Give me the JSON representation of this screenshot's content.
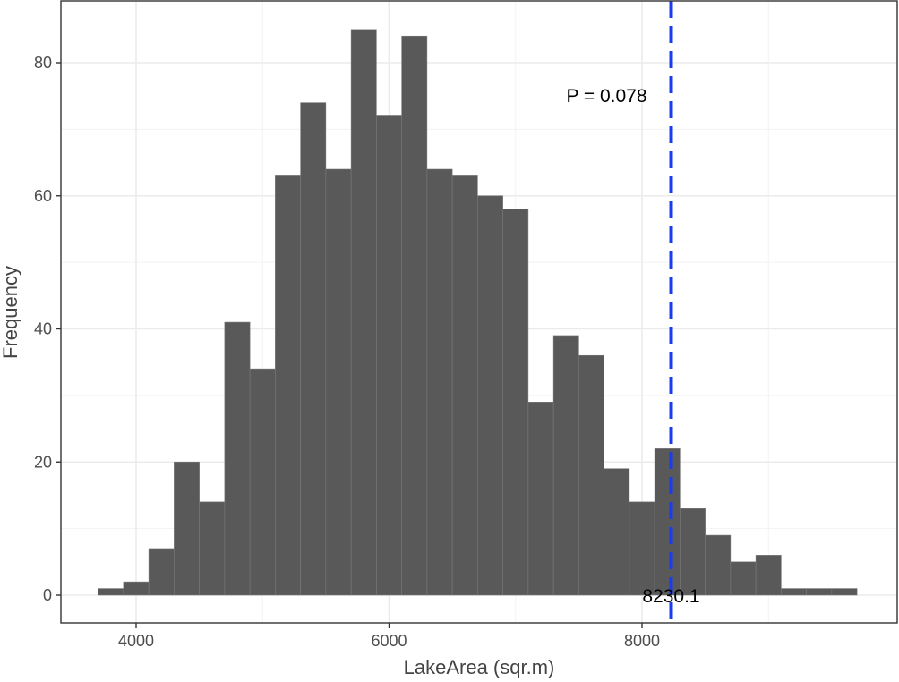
{
  "chart_data": {
    "type": "bar",
    "subtype": "histogram",
    "title": "",
    "xlabel": "LakeArea (sqr.m)",
    "ylabel": "Frequency",
    "xlim": [
      3520,
      9800
    ],
    "ylim": [
      -3,
      89
    ],
    "x_ticks": [
      4000,
      6000,
      8000
    ],
    "x_tick_labels": [
      "4000",
      "6000",
      "8000"
    ],
    "y_ticks": [
      0,
      20,
      40,
      60,
      80
    ],
    "y_tick_labels": [
      "0",
      "20",
      "40",
      "60",
      "80"
    ],
    "bin_width": 200,
    "bin_starts": [
      3700,
      3900,
      4100,
      4300,
      4500,
      4700,
      4900,
      5100,
      5300,
      5500,
      5700,
      5900,
      6100,
      6300,
      6500,
      6700,
      6900,
      7100,
      7300,
      7500,
      7700,
      7900,
      8100,
      8300,
      8500,
      8700,
      8900,
      9100,
      9300,
      9500
    ],
    "values": [
      1,
      2,
      7,
      20,
      14,
      41,
      34,
      63,
      74,
      64,
      85,
      72,
      84,
      64,
      63,
      60,
      58,
      29,
      39,
      36,
      19,
      14,
      22,
      13,
      9,
      5,
      6,
      1,
      1,
      1
    ],
    "bar_color": "#595959",
    "observed_line": {
      "x": 8230.1,
      "color": "#1a3cf0",
      "style": "dashed"
    },
    "annotations": {
      "p_value_text": "P =  0.078",
      "observed_value_text": "8230.1"
    },
    "grid": true,
    "theme": "bw"
  }
}
